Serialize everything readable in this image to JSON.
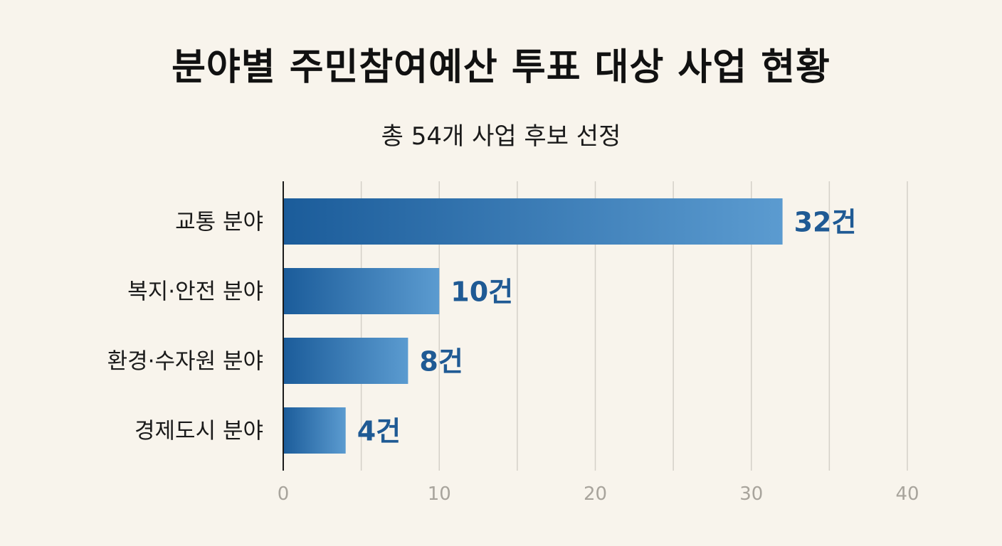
{
  "title": "분야별 주민참여예산 투표 대상 사업 현황",
  "subtitle": "총 54개 사업 후보 선정",
  "colors": {
    "background": "#f8f4ec",
    "bar_start": "#1b5c9a",
    "bar_end": "#5b9bd0",
    "value_label": "#1f5a94",
    "gridline": "#d4d0c8",
    "axis": "#1a1a1a",
    "tick_label": "#a8a49c"
  },
  "chart_data": {
    "type": "bar",
    "orientation": "horizontal",
    "title": "분야별 주민참여예산 투표 대상 사업 현황",
    "subtitle": "총 54개 사업 후보 선정",
    "categories": [
      "교통 분야",
      "복지·안전 분야",
      "환경·수자원 분야",
      "경제도시 분야"
    ],
    "values": [
      32,
      10,
      8,
      4
    ],
    "value_labels": [
      "32건",
      "10건",
      "8건",
      "4건"
    ],
    "xlim": [
      0,
      40
    ],
    "x_ticks": [
      0,
      10,
      20,
      30,
      40
    ],
    "x_tick_labels": [
      "0",
      "10",
      "20",
      "30",
      "40"
    ],
    "minor_gridlines": [
      5,
      15,
      25,
      35
    ],
    "grid": true,
    "legend": "none",
    "xlabel": "",
    "ylabel": ""
  }
}
